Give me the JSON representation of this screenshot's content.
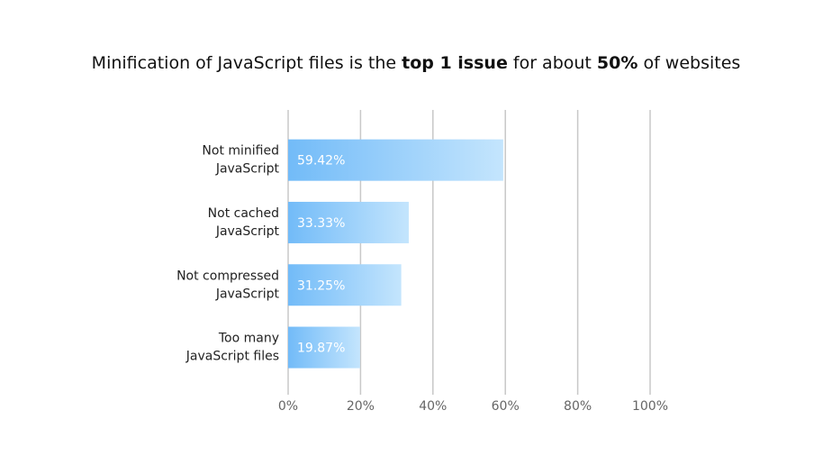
{
  "chart_data": {
    "type": "bar",
    "orientation": "horizontal",
    "title": [
      {
        "text": "Minification of JavaScript files is the ",
        "bold": false
      },
      {
        "text": "top 1 issue",
        "bold": true
      },
      {
        "text": " for about ",
        "bold": false
      },
      {
        "text": "50%",
        "bold": true
      },
      {
        "text": " of websites",
        "bold": false
      }
    ],
    "categories": [
      [
        "Not minified",
        "JavaScript"
      ],
      [
        "Not cached",
        "JavaScript"
      ],
      [
        "Not compressed",
        "JavaScript"
      ],
      [
        "Too many",
        "JavaScript files"
      ]
    ],
    "values": [
      59.42,
      33.33,
      31.25,
      19.87
    ],
    "value_labels": [
      "59.42%",
      "33.33%",
      "31.25%",
      "19.87%"
    ],
    "gradient": [
      "#72bbf8",
      "#c4e5fd"
    ],
    "xlim": [
      0,
      100
    ],
    "xticks": [
      {
        "value": 0,
        "label": "0%"
      },
      {
        "value": 20,
        "label": "20%"
      },
      {
        "value": 40,
        "label": "40%"
      },
      {
        "value": 60,
        "label": "60%"
      },
      {
        "value": 80,
        "label": "80%"
      },
      {
        "value": 100,
        "label": "100%"
      }
    ],
    "grid": true
  }
}
